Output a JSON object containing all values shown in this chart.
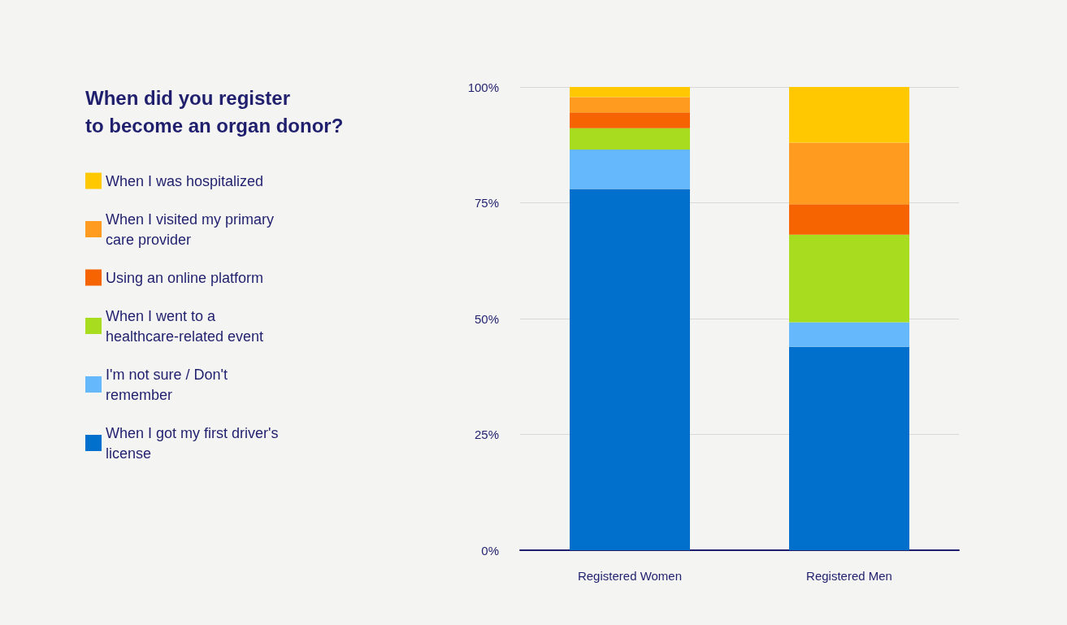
{
  "chart_data": {
    "type": "bar",
    "title": "When did you register\nto become an organ donor?",
    "categories": [
      "Registered Women",
      "Registered Men"
    ],
    "stacked": true,
    "series": [
      {
        "name": "When I got my first driver's license",
        "color": "#0070cc",
        "values": [
          78.0,
          43.9
        ]
      },
      {
        "name": "I'm not sure / Don't remember",
        "color": "#66b8fc",
        "values": [
          8.5,
          5.3
        ]
      },
      {
        "name": "When I went to a healthcare-related event",
        "color": "#a8dc1e",
        "values": [
          4.6,
          18.9
        ]
      },
      {
        "name": "Using an online platform",
        "color": "#f56400",
        "values": [
          3.4,
          6.6
        ]
      },
      {
        "name": "When I visited my primary care provider",
        "color": "#ff9c1f",
        "values": [
          3.3,
          13.3
        ]
      },
      {
        "name": "When I was hospitalized",
        "color": "#ffc800",
        "values": [
          2.2,
          12.0
        ]
      }
    ],
    "ylim": [
      0,
      100
    ],
    "yticks": [
      {
        "value": 0,
        "label": "0%"
      },
      {
        "value": 25,
        "label": "25%"
      },
      {
        "value": 50,
        "label": "50%"
      },
      {
        "value": 75,
        "label": "75%"
      },
      {
        "value": 100,
        "label": "100%"
      }
    ],
    "grid": "y",
    "legend": "left"
  }
}
